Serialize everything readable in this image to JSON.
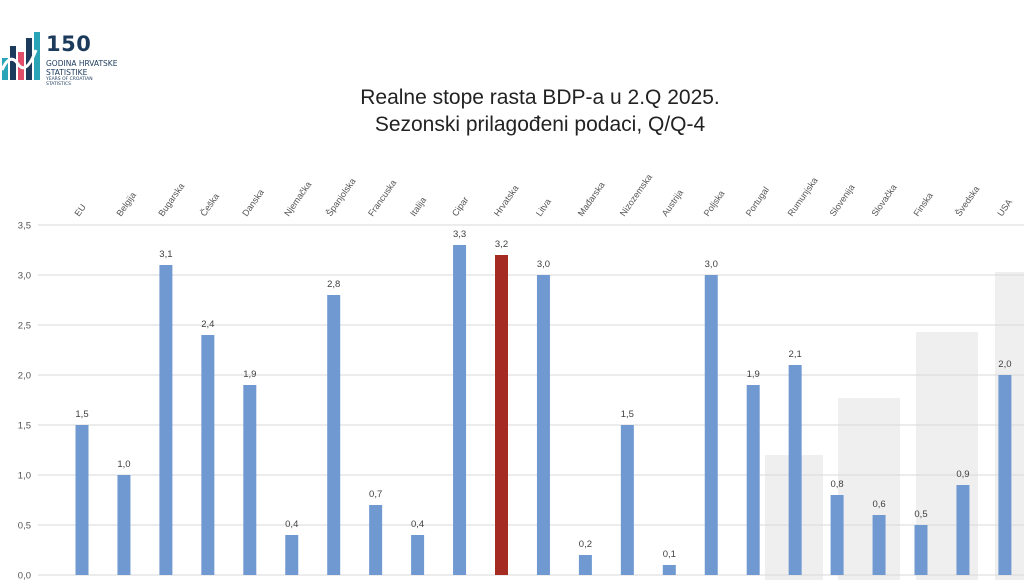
{
  "logo": {
    "number": "150",
    "line1": "GODINA HRVATSKE",
    "line2": "STATISTIKE",
    "line3": "YEARS OF CROATIAN",
    "line4": "STATISTICS"
  },
  "chart_data": {
    "type": "bar",
    "title": "Realne stope rasta BDP-a u 2.Q 2025.",
    "subtitle": "Sezonski prilagođeni podaci, Q/Q-4",
    "categories": [
      "EU",
      "Belgija",
      "Bugarska",
      "Češka",
      "Danska",
      "Njemačka",
      "Španjolska",
      "Francuska",
      "Italija",
      "Cipar",
      "Hrvatska",
      "Litva",
      "Mađarska",
      "Nizozemska",
      "Austrija",
      "Poljska",
      "Portugal",
      "Rumunjska",
      "Slovenija",
      "Slovačka",
      "Finska",
      "Švedska",
      "USA"
    ],
    "values": [
      1.5,
      1.0,
      3.1,
      2.4,
      1.9,
      0.4,
      2.8,
      0.7,
      0.4,
      3.3,
      3.2,
      3.0,
      0.2,
      1.5,
      0.1,
      3.0,
      1.9,
      2.1,
      0.8,
      0.6,
      0.5,
      0.9,
      2.0
    ],
    "data_labels": [
      "1,5",
      "1,0",
      "3,1",
      "2,4",
      "1,9",
      "0,4",
      "2,8",
      "0,7",
      "0,4",
      "3,3",
      "3,2",
      "3,0",
      "0,2",
      "1,5",
      "0,1",
      "3,0",
      "1,9",
      "2,1",
      "0,8",
      "0,6",
      "0,5",
      "0,9",
      "2,0"
    ],
    "yticks": [
      "0,0",
      "0,5",
      "1,0",
      "1,5",
      "2,0",
      "2,5",
      "3,0",
      "3,5"
    ],
    "ylim": [
      0,
      3.5
    ],
    "highlight_category": "Hrvatska",
    "grid": true,
    "colors": {
      "bar": "#7199d1",
      "highlight": "#a52a22",
      "grid": "#d9d9d9"
    }
  }
}
